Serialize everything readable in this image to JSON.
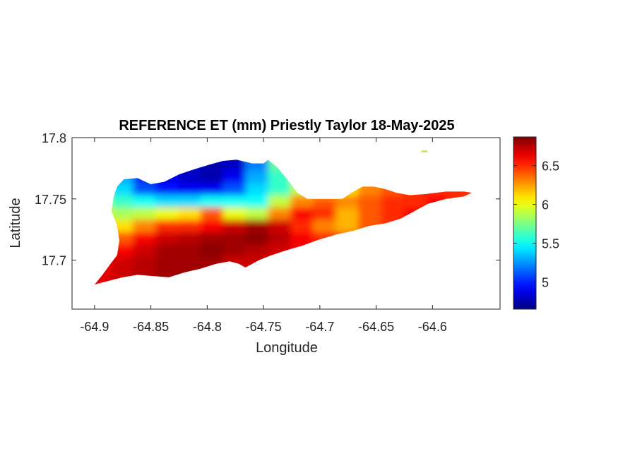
{
  "chart_data": {
    "type": "heatmap",
    "title": "REFERENCE ET (mm) Priestly Taylor 18-May-2025",
    "xlabel": "Longitude",
    "ylabel": "Latitude",
    "xlim": [
      -64.92,
      -64.54
    ],
    "ylim": [
      17.66,
      17.8
    ],
    "xticks": [
      -64.9,
      -64.85,
      -64.8,
      -64.75,
      -64.7,
      -64.65,
      -64.6
    ],
    "xtick_labels": [
      "-64.9",
      "-64.85",
      "-64.8",
      "-64.75",
      "-64.7",
      "-64.65",
      "-64.6"
    ],
    "yticks": [
      17.7,
      17.75,
      17.8
    ],
    "ytick_labels": [
      "17.7",
      "17.75",
      "17.8"
    ],
    "colorbar": {
      "colormap": "jet",
      "clim": [
        4.65,
        6.87
      ],
      "ticks": [
        5,
        5.5,
        6,
        6.5
      ],
      "tick_labels": [
        "5",
        "5.5",
        "6",
        "6.5"
      ]
    },
    "region_outline": [
      [
        -64.9,
        17.68
      ],
      [
        -64.893,
        17.688
      ],
      [
        -64.885,
        17.698
      ],
      [
        -64.88,
        17.704
      ],
      [
        -64.878,
        17.716
      ],
      [
        -64.88,
        17.728
      ],
      [
        -64.885,
        17.74
      ],
      [
        -64.883,
        17.752
      ],
      [
        -64.88,
        17.76
      ],
      [
        -64.874,
        17.766
      ],
      [
        -64.862,
        17.767
      ],
      [
        -64.85,
        17.762
      ],
      [
        -64.838,
        17.764
      ],
      [
        -64.825,
        17.77
      ],
      [
        -64.812,
        17.774
      ],
      [
        -64.798,
        17.778
      ],
      [
        -64.786,
        17.781
      ],
      [
        -64.774,
        17.782
      ],
      [
        -64.76,
        17.779
      ],
      [
        -64.75,
        17.779
      ],
      [
        -64.746,
        17.782
      ],
      [
        -64.738,
        17.776
      ],
      [
        -64.729,
        17.766
      ],
      [
        -64.72,
        17.755
      ],
      [
        -64.711,
        17.75
      ],
      [
        -64.7,
        17.75
      ],
      [
        -64.69,
        17.75
      ],
      [
        -64.68,
        17.75
      ],
      [
        -64.672,
        17.755
      ],
      [
        -64.662,
        17.76
      ],
      [
        -64.652,
        17.76
      ],
      [
        -64.642,
        17.758
      ],
      [
        -64.632,
        17.755
      ],
      [
        -64.62,
        17.753
      ],
      [
        -64.605,
        17.754
      ],
      [
        -64.588,
        17.756
      ],
      [
        -64.572,
        17.756
      ],
      [
        -64.565,
        17.755
      ],
      [
        -64.572,
        17.752
      ],
      [
        -64.588,
        17.75
      ],
      [
        -64.604,
        17.746
      ],
      [
        -64.616,
        17.74
      ],
      [
        -64.628,
        17.734
      ],
      [
        -64.642,
        17.73
      ],
      [
        -64.656,
        17.728
      ],
      [
        -64.67,
        17.724
      ],
      [
        -64.685,
        17.721
      ],
      [
        -64.7,
        17.717
      ],
      [
        -64.715,
        17.712
      ],
      [
        -64.73,
        17.708
      ],
      [
        -64.743,
        17.704
      ],
      [
        -64.754,
        17.7
      ],
      [
        -64.76,
        17.697
      ],
      [
        -64.766,
        17.694
      ],
      [
        -64.772,
        17.697
      ],
      [
        -64.78,
        17.699
      ],
      [
        -64.792,
        17.697
      ],
      [
        -64.806,
        17.693
      ],
      [
        -64.82,
        17.69
      ],
      [
        -64.834,
        17.686
      ],
      [
        -64.848,
        17.687
      ],
      [
        -64.862,
        17.688
      ],
      [
        -64.875,
        17.686
      ],
      [
        -64.888,
        17.683
      ]
    ],
    "grid_lon": [
      -64.89,
      -64.87,
      -64.85,
      -64.83,
      -64.81,
      -64.79,
      -64.77,
      -64.75,
      -64.73,
      -64.71,
      -64.69,
      -64.67,
      -64.65,
      -64.63,
      -64.61,
      -64.59,
      -64.57
    ],
    "grid_lat": [
      17.785,
      17.775,
      17.765,
      17.755,
      17.745,
      17.735,
      17.725,
      17.715,
      17.705,
      17.695,
      17.685
    ],
    "values": [
      [
        5.9,
        5.5,
        5.2,
        5.1,
        5.0,
        4.9,
        4.8,
        5.4,
        5.9,
        6.0,
        6.1,
        6.1,
        6.2,
        6.2,
        6.3,
        6.3,
        6.3
      ],
      [
        5.8,
        5.4,
        5.1,
        4.95,
        4.85,
        4.75,
        4.8,
        5.2,
        5.7,
        5.9,
        6.0,
        6.1,
        6.2,
        6.3,
        6.3,
        6.4,
        6.4
      ],
      [
        5.7,
        5.3,
        5.0,
        4.9,
        4.8,
        4.75,
        4.9,
        5.3,
        5.6,
        5.9,
        6.0,
        6.1,
        6.3,
        6.4,
        6.4,
        6.5,
        6.5
      ],
      [
        5.8,
        5.4,
        5.1,
        4.95,
        4.9,
        4.9,
        5.1,
        5.4,
        5.6,
        5.9,
        6.05,
        6.1,
        6.3,
        6.4,
        6.5,
        6.5,
        6.5
      ],
      [
        5.9,
        5.6,
        5.5,
        5.4,
        5.4,
        5.5,
        5.5,
        5.5,
        5.9,
        6.3,
        6.4,
        6.3,
        6.4,
        6.5,
        6.5,
        6.6,
        6.5
      ],
      [
        6.0,
        5.85,
        5.9,
        6.0,
        6.1,
        6.4,
        6.0,
        5.9,
        6.3,
        6.6,
        6.5,
        6.2,
        6.4,
        6.5,
        6.6,
        6.6,
        6.6
      ],
      [
        6.0,
        6.1,
        6.3,
        6.5,
        6.5,
        6.6,
        6.7,
        6.8,
        6.7,
        6.5,
        6.3,
        6.2,
        6.4,
        6.5,
        6.5,
        6.5,
        6.5
      ],
      [
        6.2,
        6.4,
        6.6,
        6.7,
        6.75,
        6.8,
        6.8,
        6.85,
        6.75,
        6.6,
        6.5,
        6.4,
        6.5,
        6.5,
        6.5,
        6.5,
        6.5
      ],
      [
        6.5,
        6.6,
        6.7,
        6.8,
        6.8,
        6.85,
        6.8,
        6.75,
        6.7,
        6.6,
        6.5,
        6.5,
        6.5,
        6.5,
        6.5,
        6.5,
        6.5
      ],
      [
        6.6,
        6.7,
        6.75,
        6.8,
        6.8,
        6.8,
        6.7,
        6.7,
        6.6,
        6.5,
        6.5,
        6.5,
        6.5,
        6.5,
        6.5,
        6.5,
        6.5
      ],
      [
        6.65,
        6.7,
        6.75,
        6.8,
        6.8,
        6.75,
        6.7,
        6.65,
        6.6,
        6.5,
        6.5,
        6.5,
        6.5,
        6.5,
        6.5,
        6.5,
        6.5
      ]
    ],
    "grid": false
  }
}
